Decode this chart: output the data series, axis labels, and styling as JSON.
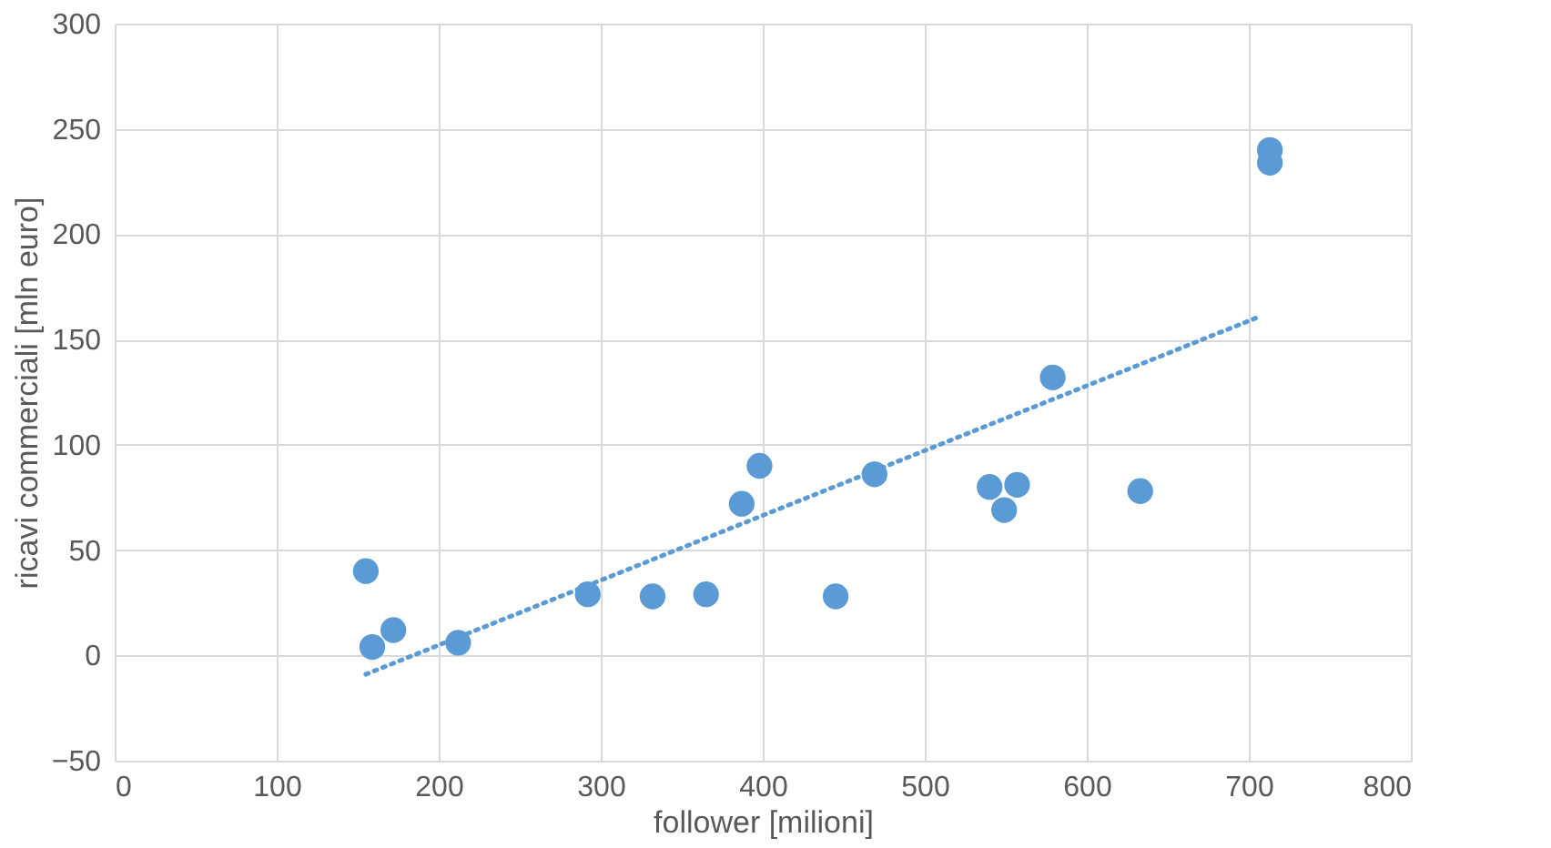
{
  "chart_data": {
    "type": "scatter",
    "xlabel": "follower [milioni]",
    "ylabel": "ricavi commerciali [mln euro]",
    "xlim": [
      0,
      800
    ],
    "xticks": [
      0,
      100,
      200,
      300,
      400,
      500,
      600,
      700,
      800
    ],
    "ylim": [
      -50,
      300
    ],
    "yticks": [
      -50,
      0,
      50,
      100,
      150,
      200,
      250,
      300
    ],
    "grid": true,
    "series": [
      {
        "color": "#5b9bd5",
        "marker": "circle",
        "x": [
          155,
          159,
          172,
          212,
          292,
          332,
          365,
          387,
          398,
          445,
          469,
          540,
          549,
          557,
          579,
          633,
          713,
          713
        ],
        "values": [
          40,
          4,
          12,
          6,
          29,
          28,
          29,
          72,
          90,
          28,
          86,
          80,
          69,
          81,
          132,
          78,
          240,
          234
        ]
      },
      {
        "type": "line",
        "color": "#5b9bd5",
        "line_style": "dotted",
        "x": [
          155,
          707
        ],
        "values": [
          -9,
          161
        ]
      }
    ]
  }
}
